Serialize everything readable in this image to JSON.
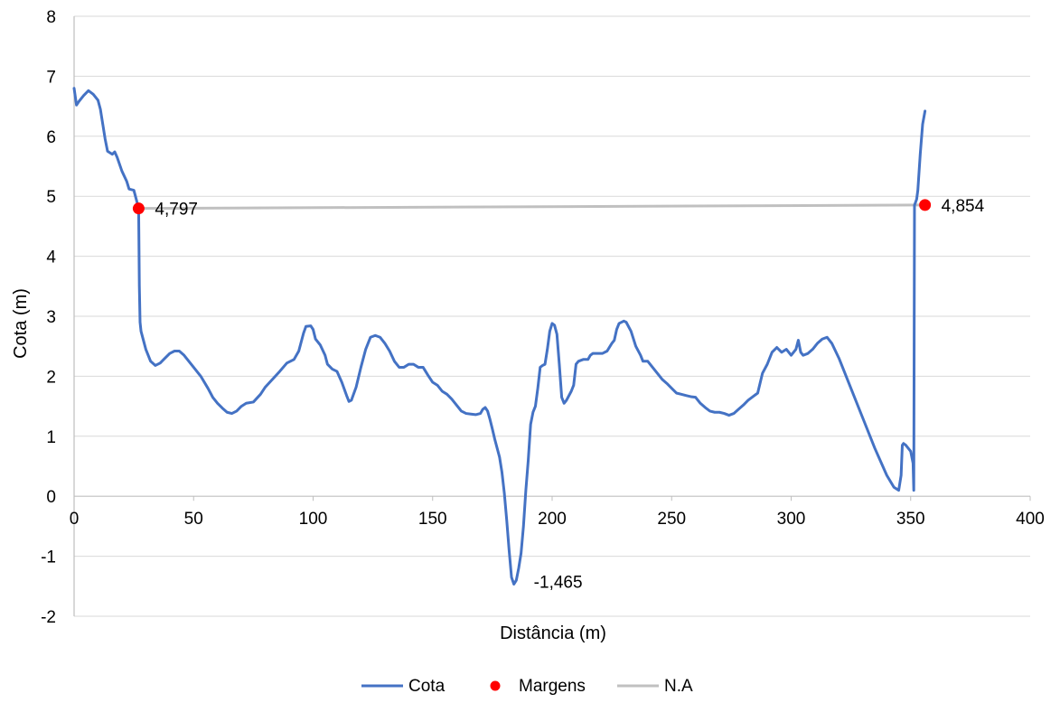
{
  "chart_data": {
    "type": "line",
    "xlabel": "Distância (m)",
    "ylabel": "Cota (m)",
    "xlim": [
      0,
      400
    ],
    "ylim": [
      -2,
      8
    ],
    "xticks": [
      0,
      50,
      100,
      150,
      200,
      250,
      300,
      350,
      400
    ],
    "yticks": [
      -2,
      -1,
      0,
      1,
      2,
      3,
      4,
      5,
      6,
      7,
      8
    ],
    "grid": "horizontal",
    "legend_position": "bottom",
    "colors": {
      "Cota": "#4472C4",
      "Margens": "#FF0000",
      "N.A": "#C0C0C0",
      "grid": "#D9D9D9",
      "axis": "#BFBFBF"
    },
    "series": [
      {
        "name": "Cota",
        "type": "line",
        "points": [
          [
            0,
            6.8
          ],
          [
            1,
            6.52
          ],
          [
            2,
            6.58
          ],
          [
            4,
            6.68
          ],
          [
            6,
            6.76
          ],
          [
            8,
            6.7
          ],
          [
            10,
            6.6
          ],
          [
            11,
            6.45
          ],
          [
            12,
            6.2
          ],
          [
            13,
            5.95
          ],
          [
            14,
            5.75
          ],
          [
            16,
            5.7
          ],
          [
            17,
            5.74
          ],
          [
            18,
            5.65
          ],
          [
            20,
            5.42
          ],
          [
            22,
            5.25
          ],
          [
            23,
            5.12
          ],
          [
            25,
            5.1
          ],
          [
            26,
            4.95
          ],
          [
            27,
            4.8
          ],
          [
            27.3,
            3.5
          ],
          [
            27.6,
            2.9
          ],
          [
            28,
            2.75
          ],
          [
            29,
            2.6
          ],
          [
            30,
            2.45
          ],
          [
            32,
            2.25
          ],
          [
            34,
            2.18
          ],
          [
            36,
            2.22
          ],
          [
            38,
            2.3
          ],
          [
            40,
            2.38
          ],
          [
            42,
            2.42
          ],
          [
            44,
            2.42
          ],
          [
            46,
            2.35
          ],
          [
            48,
            2.25
          ],
          [
            50,
            2.15
          ],
          [
            53,
            2.0
          ],
          [
            56,
            1.8
          ],
          [
            58,
            1.65
          ],
          [
            60,
            1.55
          ],
          [
            62,
            1.47
          ],
          [
            64,
            1.4
          ],
          [
            66,
            1.38
          ],
          [
            68,
            1.42
          ],
          [
            70,
            1.5
          ],
          [
            72,
            1.55
          ],
          [
            75,
            1.57
          ],
          [
            78,
            1.7
          ],
          [
            80,
            1.82
          ],
          [
            83,
            1.95
          ],
          [
            86,
            2.08
          ],
          [
            89,
            2.22
          ],
          [
            92,
            2.28
          ],
          [
            94,
            2.42
          ],
          [
            96,
            2.72
          ],
          [
            97,
            2.83
          ],
          [
            99,
            2.84
          ],
          [
            100,
            2.78
          ],
          [
            101,
            2.62
          ],
          [
            103,
            2.52
          ],
          [
            105,
            2.35
          ],
          [
            106,
            2.2
          ],
          [
            108,
            2.12
          ],
          [
            110,
            2.08
          ],
          [
            112,
            1.9
          ],
          [
            114,
            1.68
          ],
          [
            115,
            1.58
          ],
          [
            116,
            1.6
          ],
          [
            118,
            1.82
          ],
          [
            120,
            2.15
          ],
          [
            122,
            2.45
          ],
          [
            124,
            2.65
          ],
          [
            126,
            2.68
          ],
          [
            128,
            2.65
          ],
          [
            130,
            2.55
          ],
          [
            132,
            2.42
          ],
          [
            134,
            2.25
          ],
          [
            136,
            2.15
          ],
          [
            138,
            2.15
          ],
          [
            140,
            2.2
          ],
          [
            142,
            2.2
          ],
          [
            144,
            2.15
          ],
          [
            146,
            2.15
          ],
          [
            148,
            2.02
          ],
          [
            150,
            1.9
          ],
          [
            152,
            1.85
          ],
          [
            154,
            1.75
          ],
          [
            156,
            1.7
          ],
          [
            158,
            1.62
          ],
          [
            160,
            1.52
          ],
          [
            162,
            1.42
          ],
          [
            164,
            1.38
          ],
          [
            166,
            1.37
          ],
          [
            168,
            1.36
          ],
          [
            170,
            1.38
          ],
          [
            171,
            1.45
          ],
          [
            172,
            1.48
          ],
          [
            173,
            1.42
          ],
          [
            174,
            1.28
          ],
          [
            175,
            1.12
          ],
          [
            176,
            0.95
          ],
          [
            178,
            0.65
          ],
          [
            179,
            0.4
          ],
          [
            180,
            0.05
          ],
          [
            181,
            -0.4
          ],
          [
            182,
            -0.9
          ],
          [
            183,
            -1.35
          ],
          [
            184,
            -1.465
          ],
          [
            185,
            -1.4
          ],
          [
            186,
            -1.2
          ],
          [
            187,
            -0.95
          ],
          [
            188,
            -0.5
          ],
          [
            189,
            0.1
          ],
          [
            190,
            0.6
          ],
          [
            191,
            1.2
          ],
          [
            192,
            1.4
          ],
          [
            193,
            1.5
          ],
          [
            194,
            1.8
          ],
          [
            195,
            2.15
          ],
          [
            196,
            2.18
          ],
          [
            197,
            2.2
          ],
          [
            198,
            2.45
          ],
          [
            199,
            2.75
          ],
          [
            200,
            2.88
          ],
          [
            201,
            2.85
          ],
          [
            202,
            2.7
          ],
          [
            203,
            2.2
          ],
          [
            204,
            1.65
          ],
          [
            205,
            1.55
          ],
          [
            206,
            1.6
          ],
          [
            208,
            1.75
          ],
          [
            209,
            1.85
          ],
          [
            210,
            2.2
          ],
          [
            211,
            2.25
          ],
          [
            213,
            2.28
          ],
          [
            215,
            2.28
          ],
          [
            216,
            2.35
          ],
          [
            217,
            2.38
          ],
          [
            219,
            2.38
          ],
          [
            221,
            2.38
          ],
          [
            223,
            2.42
          ],
          [
            225,
            2.55
          ],
          [
            226,
            2.6
          ],
          [
            227,
            2.78
          ],
          [
            228,
            2.88
          ],
          [
            230,
            2.92
          ],
          [
            231,
            2.9
          ],
          [
            233,
            2.75
          ],
          [
            235,
            2.5
          ],
          [
            237,
            2.35
          ],
          [
            238,
            2.25
          ],
          [
            240,
            2.25
          ],
          [
            242,
            2.15
          ],
          [
            244,
            2.05
          ],
          [
            246,
            1.95
          ],
          [
            248,
            1.88
          ],
          [
            250,
            1.8
          ],
          [
            252,
            1.72
          ],
          [
            254,
            1.7
          ],
          [
            256,
            1.68
          ],
          [
            258,
            1.66
          ],
          [
            260,
            1.65
          ],
          [
            262,
            1.55
          ],
          [
            264,
            1.48
          ],
          [
            266,
            1.42
          ],
          [
            268,
            1.4
          ],
          [
            270,
            1.4
          ],
          [
            272,
            1.38
          ],
          [
            274,
            1.35
          ],
          [
            276,
            1.38
          ],
          [
            278,
            1.45
          ],
          [
            280,
            1.52
          ],
          [
            282,
            1.6
          ],
          [
            284,
            1.66
          ],
          [
            286,
            1.72
          ],
          [
            288,
            2.05
          ],
          [
            290,
            2.2
          ],
          [
            292,
            2.4
          ],
          [
            294,
            2.48
          ],
          [
            296,
            2.4
          ],
          [
            298,
            2.45
          ],
          [
            300,
            2.35
          ],
          [
            302,
            2.45
          ],
          [
            303,
            2.6
          ],
          [
            304,
            2.4
          ],
          [
            305,
            2.35
          ],
          [
            307,
            2.38
          ],
          [
            309,
            2.45
          ],
          [
            311,
            2.55
          ],
          [
            313,
            2.62
          ],
          [
            315,
            2.65
          ],
          [
            317,
            2.55
          ],
          [
            320,
            2.3
          ],
          [
            325,
            1.8
          ],
          [
            330,
            1.3
          ],
          [
            335,
            0.8
          ],
          [
            340,
            0.35
          ],
          [
            343,
            0.15
          ],
          [
            345,
            0.1
          ],
          [
            346,
            0.35
          ],
          [
            346.5,
            0.85
          ],
          [
            347,
            0.88
          ],
          [
            348,
            0.85
          ],
          [
            350,
            0.75
          ],
          [
            351,
            0.55
          ],
          [
            351.3,
            0.1
          ],
          [
            351.6,
            4.85
          ],
          [
            352.5,
            4.95
          ],
          [
            353,
            5.1
          ],
          [
            354,
            5.7
          ],
          [
            355,
            6.2
          ],
          [
            356,
            6.42
          ]
        ]
      },
      {
        "name": "Margens",
        "type": "scatter",
        "points": [
          [
            27,
            4.797
          ],
          [
            356,
            4.854
          ]
        ]
      },
      {
        "name": "N.A",
        "type": "line",
        "points": [
          [
            27,
            4.797
          ],
          [
            356,
            4.854
          ]
        ]
      }
    ],
    "data_labels": [
      {
        "x": 27,
        "y": 4.797,
        "text": "4,797"
      },
      {
        "x": 356,
        "y": 4.854,
        "text": "4,854"
      },
      {
        "x": 184,
        "y": -1.465,
        "text": "-1,465"
      }
    ]
  }
}
